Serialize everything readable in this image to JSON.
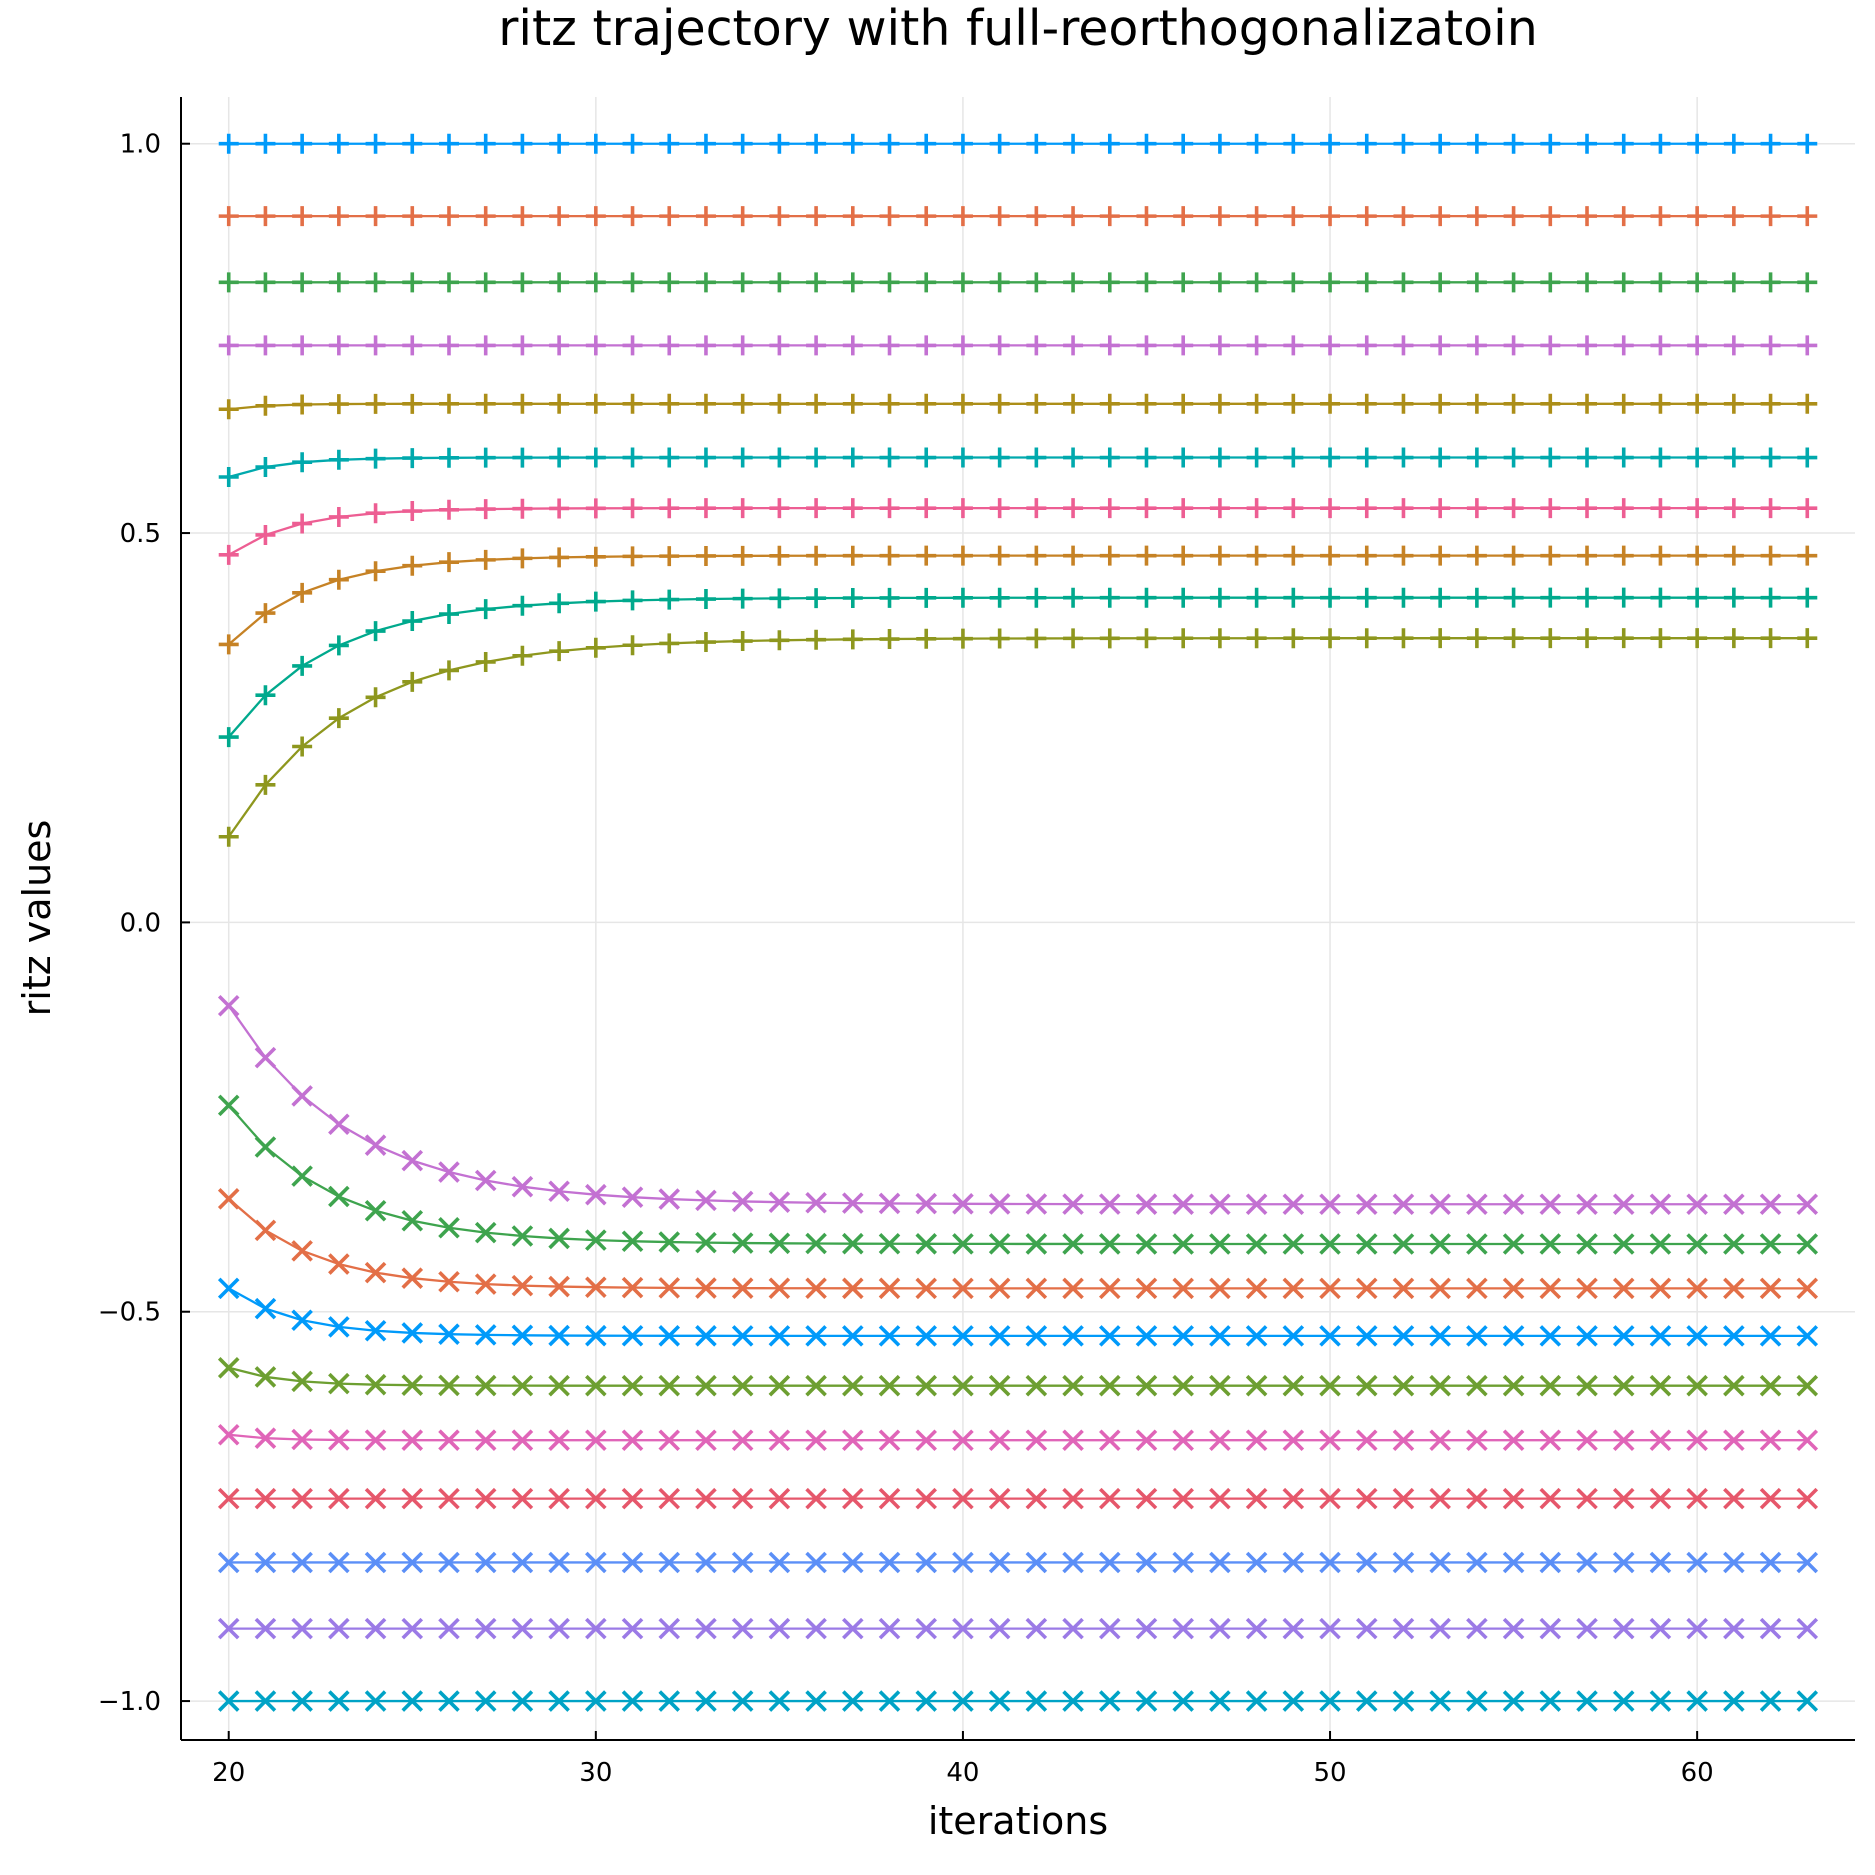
{
  "chart_data": {
    "type": "line",
    "title": "ritz trajectory with full-reorthogonalizatoin",
    "xlabel": "iterations",
    "ylabel": "ritz values",
    "xlim": [
      18.7,
      64.3
    ],
    "ylim": [
      -1.05,
      1.06
    ],
    "xticks": [
      20,
      30,
      40,
      50,
      60
    ],
    "xtick_labels": [
      "20",
      "30",
      "40",
      "50",
      "60"
    ],
    "yticks": [
      -1.0,
      -0.5,
      0.0,
      0.5,
      1.0
    ],
    "ytick_labels": [
      "−1.0",
      "−0.5",
      "0.0",
      "0.5",
      "1.0"
    ],
    "grid": true,
    "legend": "none",
    "x_start": 20,
    "x_end": 63,
    "series": [
      {
        "color": "#009AFA",
        "marker": "cross",
        "final": 1.0,
        "initial": 1.0,
        "tau": 1.0
      },
      {
        "color": "#E36F47",
        "marker": "cross",
        "final": 0.907,
        "initial": 0.907,
        "tau": 1.0
      },
      {
        "color": "#3EA44E",
        "marker": "cross",
        "final": 0.822,
        "initial": 0.822,
        "tau": 1.0
      },
      {
        "color": "#C371D2",
        "marker": "cross",
        "final": 0.741,
        "initial": 0.741,
        "tau": 1.0
      },
      {
        "color": "#AC8E18",
        "marker": "cross",
        "final": 0.666,
        "initial": 0.659,
        "tau": 1.0
      },
      {
        "color": "#00A9AD",
        "marker": "cross",
        "final": 0.597,
        "initial": 0.572,
        "tau": 1.4
      },
      {
        "color": "#ED5E93",
        "marker": "cross",
        "final": 0.532,
        "initial": 0.472,
        "tau": 1.8
      },
      {
        "color": "#C68225",
        "marker": "cross",
        "final": 0.471,
        "initial": 0.357,
        "tau": 2.3
      },
      {
        "color": "#00A98D",
        "marker": "cross",
        "final": 0.417,
        "initial": 0.238,
        "tau": 2.8
      },
      {
        "color": "#8E971E",
        "marker": "cross",
        "final": 0.365,
        "initial": 0.11,
        "tau": 3.3
      },
      {
        "color": "#C371D2",
        "marker": "x",
        "final": -0.362,
        "initial": -0.107,
        "tau": 3.3
      },
      {
        "color": "#3EA44E",
        "marker": "x",
        "final": -0.413,
        "initial": -0.235,
        "tau": 2.8
      },
      {
        "color": "#E36F47",
        "marker": "x",
        "final": -0.47,
        "initial": -0.355,
        "tau": 2.3
      },
      {
        "color": "#009AFA",
        "marker": "x",
        "final": -0.531,
        "initial": -0.47,
        "tau": 1.8
      },
      {
        "color": "#6D9F31",
        "marker": "x",
        "final": -0.595,
        "initial": -0.572,
        "tau": 1.4
      },
      {
        "color": "#E065B8",
        "marker": "x",
        "final": -0.665,
        "initial": -0.658,
        "tau": 1.0
      },
      {
        "color": "#E6576B",
        "marker": "x",
        "final": -0.74,
        "initial": -0.74,
        "tau": 1.0
      },
      {
        "color": "#5B8FF7",
        "marker": "x",
        "final": -0.822,
        "initial": -0.822,
        "tau": 1.0
      },
      {
        "color": "#9B7AE6",
        "marker": "x",
        "final": -0.907,
        "initial": -0.907,
        "tau": 1.0
      },
      {
        "color": "#00A3C6",
        "marker": "x",
        "final": -1.0,
        "initial": -1.0,
        "tau": 1.0
      }
    ]
  }
}
